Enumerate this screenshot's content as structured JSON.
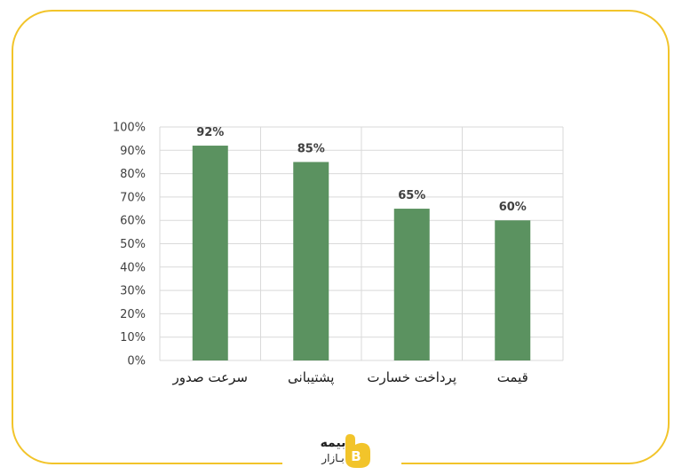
{
  "chart_data": {
    "type": "bar",
    "categories": [
      "سرعت صدور",
      "پشتیبانی",
      "پرداخت خسارت",
      "قیمت"
    ],
    "values": [
      92,
      85,
      65,
      60
    ],
    "value_labels": [
      "92%",
      "85%",
      "65%",
      "60%"
    ],
    "y_ticks": [
      "0%",
      "10%",
      "20%",
      "30%",
      "40%",
      "50%",
      "60%",
      "70%",
      "80%",
      "90%",
      "100%"
    ],
    "ylim": [
      0,
      100
    ],
    "unit": "%",
    "title": "",
    "xlabel": "",
    "ylabel": "",
    "grid": true,
    "bar_color": "#5b9260"
  },
  "logo": {
    "line1": "بیمه",
    "line2": "بـازار",
    "accent_color": "#f2c42a",
    "icon": "b-letter-logo-icon"
  },
  "frame": {
    "border_color": "#f2c42a"
  }
}
